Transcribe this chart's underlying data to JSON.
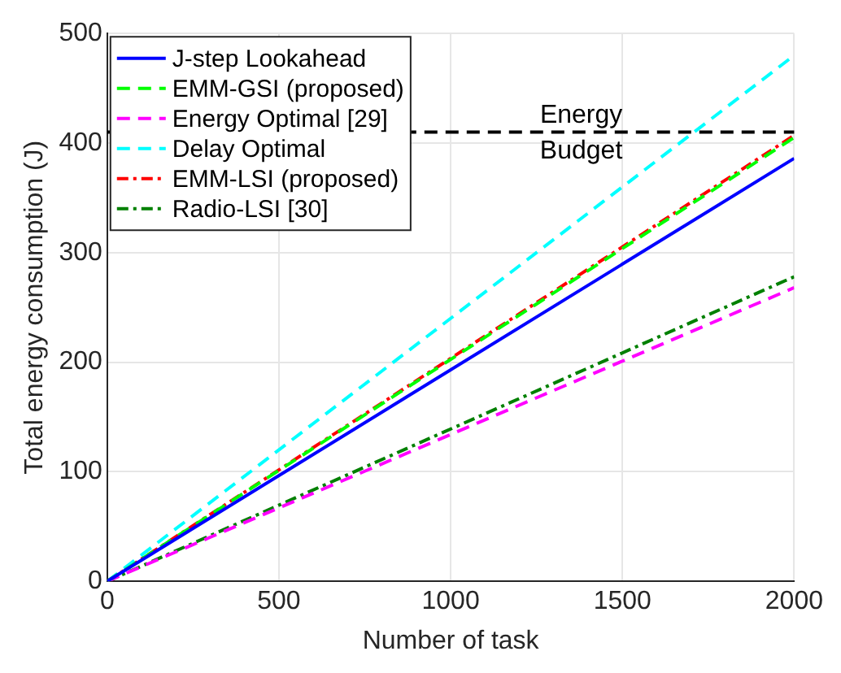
{
  "chart_data": {
    "type": "line",
    "xlabel": "Number of task",
    "ylabel": "Total energy consumption (J)",
    "xlim": [
      0,
      2000
    ],
    "ylim": [
      0,
      500
    ],
    "xticks": [
      0,
      500,
      1000,
      1500,
      2000
    ],
    "yticks": [
      0,
      100,
      200,
      300,
      400,
      500
    ],
    "grid": true,
    "legend": "top left",
    "marker": "none",
    "x": [
      0,
      2000
    ],
    "series": [
      {
        "name": "J-step Lookahead",
        "color": "#0000ff",
        "values": [
          0,
          386
        ],
        "line_style": "solid"
      },
      {
        "name": "EMM-GSI (proposed)",
        "color": "#00ff00",
        "values": [
          0,
          405
        ],
        "line_style": "dashed"
      },
      {
        "name": "Energy Optimal [29]",
        "color": "#ff00ff",
        "values": [
          0,
          268
        ],
        "line_style": "dashed"
      },
      {
        "name": "Delay Optimal",
        "color": "#00ffff",
        "values": [
          0,
          480
        ],
        "line_style": "dashed"
      },
      {
        "name": "EMM-LSI (proposed)",
        "color": "#ff0000",
        "values": [
          0,
          407
        ],
        "line_style": "dotted"
      },
      {
        "name": "Radio-LSI [30]",
        "color": "#008000",
        "values": [
          0,
          278
        ],
        "line_style": "dotted"
      }
    ],
    "ref_lines": [
      {
        "axis": "y",
        "value": 410,
        "label": "Energy Budget",
        "color": "#000000",
        "line_style": "dashed"
      }
    ]
  }
}
